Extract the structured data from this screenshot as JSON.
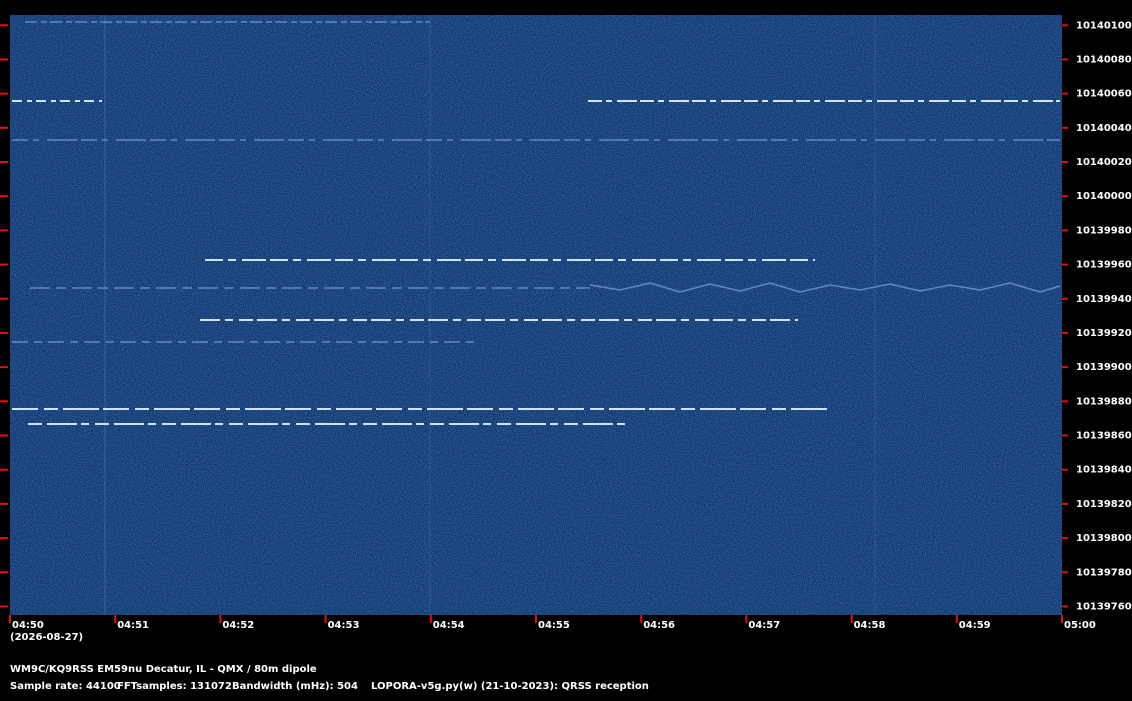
{
  "chart_data": {
    "type": "spectrogram",
    "x_labels": [
      "04:50",
      "04:51",
      "04:52",
      "04:53",
      "04:54",
      "04:55",
      "04:56",
      "04:57",
      "04:58",
      "04:59",
      "05:00"
    ],
    "date_label": "(2026-08-27)",
    "ylim": [
      10139755,
      10140106
    ],
    "yticks": [
      10139760,
      10139780,
      10139800,
      10139820,
      10139840,
      10139860,
      10139880,
      10139900,
      10139920,
      10139940,
      10139960,
      10139980,
      10140000,
      10140020,
      10140040,
      10140060,
      10140080,
      10140100
    ],
    "station": "WM9C/KQ9RSS EM59nu Decatur, IL - QMX / 80m dipole",
    "info": [
      "Sample rate: 44100",
      "FFTsamples: 131072",
      "Bandwidth (mHz): 504",
      "LOPORA-v5g.py(w) (21-10-2023): QRSS reception"
    ]
  }
}
